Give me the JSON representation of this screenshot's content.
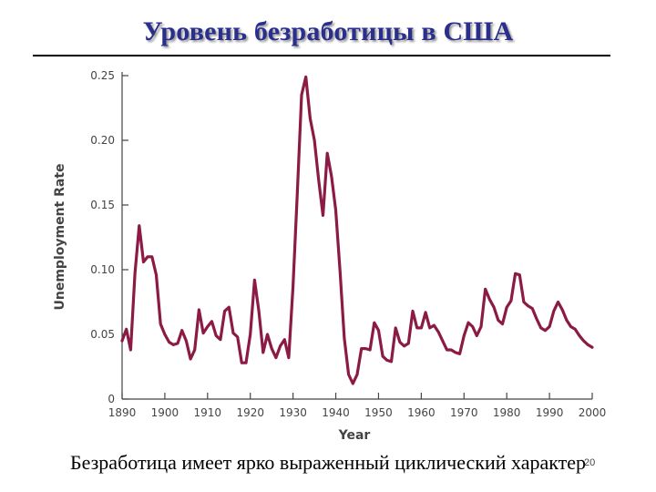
{
  "slide": {
    "title": "Уровень безработицы в США",
    "caption": "Безработица имеет ярко выраженный циклический характер",
    "page_number": "20"
  },
  "colors": {
    "title": "#2b2f8c",
    "series_line": "#8b1a44",
    "axis": "#444444"
  },
  "chart_data": {
    "type": "line",
    "title": "",
    "xlabel": "Year",
    "ylabel": "Unemployment Rate",
    "xlim": [
      1890,
      2000
    ],
    "ylim": [
      0,
      0.25
    ],
    "x_ticks": [
      1890,
      1900,
      1910,
      1920,
      1930,
      1940,
      1950,
      1960,
      1970,
      1980,
      1990,
      2000
    ],
    "y_ticks": [
      0,
      0.05,
      0.1,
      0.15,
      0.2,
      0.25
    ],
    "y_tick_labels": [
      "0",
      "0.05",
      "0.10",
      "0.15",
      "0.20",
      "0.25"
    ],
    "grid": false,
    "legend": "none",
    "series": [
      {
        "x": [
          1890,
          1891,
          1892,
          1893,
          1894,
          1895,
          1896,
          1897,
          1898,
          1899,
          1900,
          1901,
          1902,
          1903,
          1904,
          1905,
          1906,
          1907,
          1908,
          1909,
          1910,
          1911,
          1912,
          1913,
          1914,
          1915,
          1916,
          1917,
          1918,
          1919,
          1920,
          1921,
          1922,
          1923,
          1924,
          1925,
          1926,
          1927,
          1928,
          1929,
          1930,
          1931,
          1932,
          1933,
          1934,
          1935,
          1936,
          1937,
          1938,
          1939,
          1940,
          1941,
          1942,
          1943,
          1944,
          1945,
          1946,
          1947,
          1948,
          1949,
          1950,
          1951,
          1952,
          1953,
          1954,
          1955,
          1956,
          1957,
          1958,
          1959,
          1960,
          1961,
          1962,
          1963,
          1964,
          1965,
          1966,
          1967,
          1968,
          1969,
          1970,
          1971,
          1972,
          1973,
          1974,
          1975,
          1976,
          1977,
          1978,
          1979,
          1980,
          1981,
          1982,
          1983,
          1984,
          1985,
          1986,
          1987,
          1988,
          1989,
          1990,
          1991,
          1992,
          1993,
          1994,
          1995,
          1996,
          1997,
          1998,
          1999,
          2000
        ],
        "y": [
          0.045,
          0.054,
          0.038,
          0.097,
          0.134,
          0.106,
          0.11,
          0.11,
          0.096,
          0.058,
          0.05,
          0.044,
          0.042,
          0.043,
          0.053,
          0.045,
          0.031,
          0.038,
          0.069,
          0.051,
          0.056,
          0.06,
          0.049,
          0.046,
          0.068,
          0.071,
          0.051,
          0.048,
          0.028,
          0.028,
          0.05,
          0.092,
          0.068,
          0.036,
          0.05,
          0.039,
          0.032,
          0.041,
          0.046,
          0.032,
          0.087,
          0.159,
          0.235,
          0.249,
          0.217,
          0.2,
          0.169,
          0.142,
          0.19,
          0.172,
          0.146,
          0.099,
          0.047,
          0.019,
          0.012,
          0.019,
          0.039,
          0.039,
          0.038,
          0.059,
          0.053,
          0.033,
          0.03,
          0.029,
          0.055,
          0.044,
          0.041,
          0.043,
          0.068,
          0.055,
          0.055,
          0.067,
          0.055,
          0.057,
          0.052,
          0.045,
          0.038,
          0.038,
          0.036,
          0.035,
          0.049,
          0.059,
          0.056,
          0.049,
          0.056,
          0.085,
          0.077,
          0.071,
          0.061,
          0.058,
          0.071,
          0.076,
          0.097,
          0.096,
          0.075,
          0.072,
          0.07,
          0.062,
          0.055,
          0.053,
          0.056,
          0.068,
          0.075,
          0.069,
          0.061,
          0.056,
          0.054,
          0.049,
          0.045,
          0.042,
          0.04
        ]
      }
    ]
  }
}
